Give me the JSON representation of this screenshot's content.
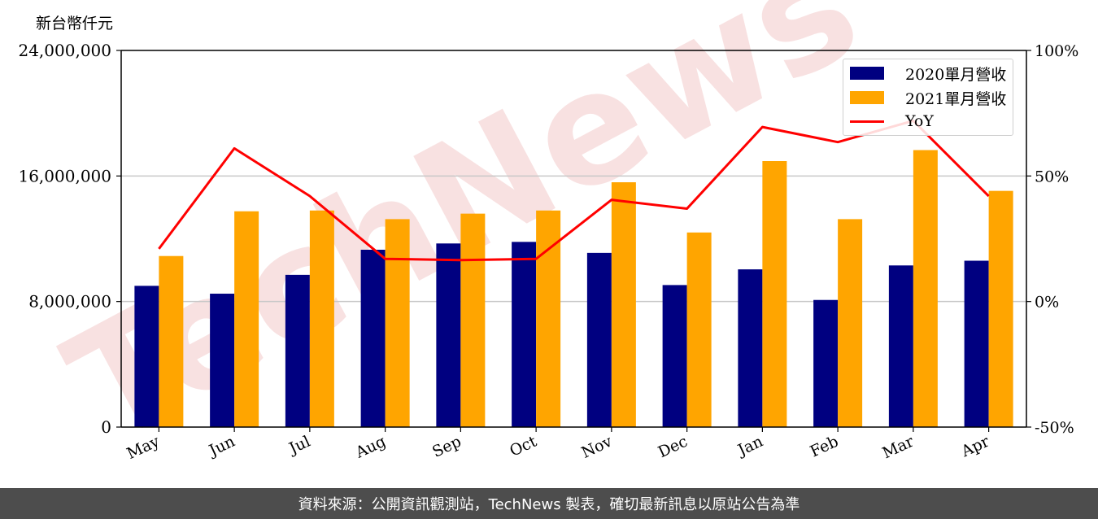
{
  "unit_label": "新台幣仟元",
  "footer": "資料來源：公開資訊觀測站，TechNews 製表，確切最新訊息以原站公告為準",
  "watermark": "TechNews",
  "colors": {
    "series_2020": "#000080",
    "series_2021": "#ffa500",
    "yoy": "#ff0000",
    "grid": "#c8c8c8",
    "watermark": "#f3c8c8"
  },
  "chart_data": {
    "type": "bar",
    "categories": [
      "May",
      "Jun",
      "Jul",
      "Aug",
      "Sep",
      "Oct",
      "Nov",
      "Dec",
      "Jan",
      "Feb",
      "Mar",
      "Apr"
    ],
    "series": [
      {
        "name": "2020單月營收",
        "values": [
          9000000,
          8500000,
          9700000,
          11300000,
          11700000,
          11800000,
          11100000,
          9050000,
          10050000,
          8100000,
          10300000,
          10600000
        ]
      },
      {
        "name": "2021單月營收",
        "values": [
          10900000,
          13750000,
          13800000,
          13250000,
          13600000,
          13800000,
          15600000,
          12400000,
          16950000,
          13250000,
          17650000,
          15050000
        ]
      }
    ],
    "line_series": {
      "name": "YoY",
      "axis": "right",
      "values": [
        21,
        61,
        42,
        17,
        16.5,
        17,
        40.5,
        37,
        69.5,
        63.5,
        72,
        42
      ]
    },
    "yticks": [
      "0",
      "8,000,000",
      "16,000,000",
      "24,000,000"
    ],
    "ylim": [
      0,
      24000000
    ],
    "y2ticks": [
      "-50%",
      "0%",
      "50%",
      "100%"
    ],
    "y2lim": [
      -50,
      100
    ],
    "grid": true,
    "legend": "top-right",
    "xlabel": "",
    "ylabel": ""
  }
}
